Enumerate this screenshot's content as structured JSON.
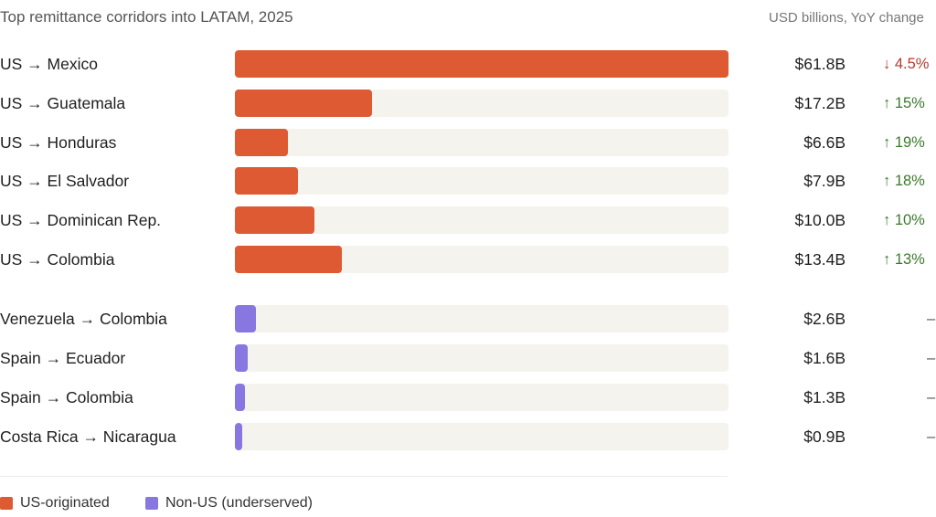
{
  "chart_data": {
    "type": "bar",
    "orientation": "horizontal",
    "title": "Top remittance corridors into LATAM, 2025",
    "units_note": "USD billions, YoY change",
    "xlim": [
      0,
      61.8
    ],
    "categories": [
      "US → Mexico",
      "US → Guatemala",
      "US → Honduras",
      "US → El Salvador",
      "US → Dominican Rep.",
      "US → Colombia",
      "Venezuela → Colombia",
      "Spain → Ecuador",
      "Spain → Colombia",
      "Costa Rica → Nicaragua"
    ],
    "values": [
      61.8,
      17.2,
      6.6,
      7.9,
      10.0,
      13.4,
      2.6,
      1.6,
      1.3,
      0.9
    ],
    "value_labels": [
      "$61.8B",
      "$17.2B",
      "$6.6B",
      "$7.9B",
      "$10.0B",
      "$13.4B",
      "$2.6B",
      "$1.6B",
      "$1.3B",
      "$0.9B"
    ],
    "yoy_labels": [
      "↓ 4.5%",
      "↑ 15%",
      "↑ 19%",
      "↑ 18%",
      "↑ 10%",
      "↑ 13%",
      "–",
      "–",
      "–",
      "–"
    ],
    "yoy_direction": [
      "down",
      "up",
      "up",
      "up",
      "up",
      "up",
      "none",
      "none",
      "none",
      "none"
    ],
    "groups": [
      "us",
      "us",
      "us",
      "us",
      "us",
      "us",
      "nonus",
      "nonus",
      "nonus",
      "nonus"
    ],
    "legend": [
      {
        "key": "us",
        "label": "US-originated",
        "color": "#dd5a32"
      },
      {
        "key": "nonus",
        "label": "Non-US (underserved)",
        "color": "#8877e0"
      }
    ],
    "legend_position": "bottom-left",
    "grid": false
  },
  "colors": {
    "us": "#dd5a32",
    "nonus": "#8877e0",
    "track": "#f4f3ee",
    "up": "#3c7a2c",
    "down": "#b83a2e",
    "neutral": "#555555"
  }
}
